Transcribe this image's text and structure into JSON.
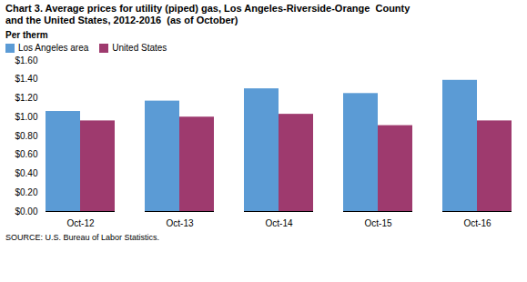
{
  "chart_data": {
    "type": "bar",
    "title": "Chart 3. Average prices for utility (piped) gas, Los Angeles-Riverside-Orange  County\nand the United States, 2012-2016  (as of October)",
    "ylabel": "Per therm",
    "annotations": [
      "SOURCE: U.S. Bureau of Labor Statistics."
    ],
    "categories": [
      "Oct-12",
      "Oct-13",
      "Oct-14",
      "Oct-15",
      "Oct-16"
    ],
    "series": [
      {
        "name": "Los Angeles area",
        "color": "#5B9BD5",
        "values": [
          1.06,
          1.17,
          1.3,
          1.25,
          1.39
        ]
      },
      {
        "name": "United States",
        "color": "#9E3A6E",
        "values": [
          0.96,
          1.0,
          1.03,
          0.91,
          0.96
        ]
      }
    ],
    "ylim": [
      0,
      1.6
    ],
    "yticks": [
      {
        "value": 0.0,
        "label": "$0.00"
      },
      {
        "value": 0.2,
        "label": "$0.20"
      },
      {
        "value": 0.4,
        "label": "$0.40"
      },
      {
        "value": 0.6,
        "label": "$0.60"
      },
      {
        "value": 0.8,
        "label": "$0.80"
      },
      {
        "value": 1.0,
        "label": "$1.00"
      },
      {
        "value": 1.2,
        "label": "$1.20"
      },
      {
        "value": 1.4,
        "label": "$1.40"
      },
      {
        "value": 1.6,
        "label": "$1.60"
      }
    ],
    "grid": false,
    "legend": "upper left"
  }
}
